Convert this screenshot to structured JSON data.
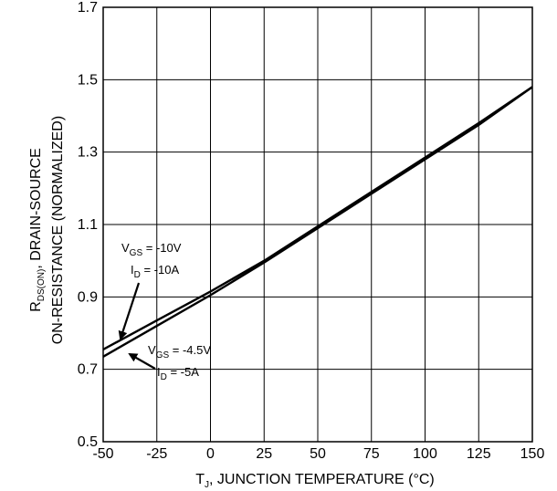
{
  "chart_data": {
    "type": "line",
    "xlim": [
      -50,
      150
    ],
    "ylim": [
      0.5,
      1.7
    ],
    "x_ticks": [
      -50,
      -25,
      0,
      25,
      50,
      75,
      100,
      125,
      150
    ],
    "y_ticks": [
      0.5,
      0.7,
      0.9,
      1.1,
      1.3,
      1.5,
      1.7
    ],
    "x_tick_labels": [
      "-50",
      "-25",
      "0",
      "25",
      "50",
      "75",
      "100",
      "125",
      "150"
    ],
    "y_tick_labels": [
      "0.5",
      "0.7",
      "0.9",
      "1.1",
      "1.3",
      "1.5",
      "1.7"
    ],
    "grid": true,
    "xlabel": {
      "main": "T",
      "sub": "J",
      "rest": ", JUNCTION TEMPERATURE (°C)"
    },
    "ylabel": {
      "line1_main": "R",
      "line1_sub": "DS(ON)",
      "line1_rest": ", DRAIN-SOURCE",
      "line2": "ON-RESISTANCE (NORMALIZED)"
    },
    "series": [
      {
        "x": [
          -50,
          -25,
          0,
          25,
          50,
          75,
          100,
          125,
          150
        ],
        "y": [
          0.755,
          0.835,
          0.915,
          1.0,
          1.095,
          1.19,
          1.285,
          1.38,
          1.48
        ],
        "annotation": {
          "vgs_main": "V",
          "vgs_sub": "GS",
          "vgs_rest": " = -10V",
          "id_main": "I",
          "id_sub": "D",
          "id_rest": " = -10A"
        }
      },
      {
        "x": [
          -50,
          -25,
          0,
          25,
          50,
          75,
          100,
          125,
          150
        ],
        "y": [
          0.735,
          0.82,
          0.905,
          0.995,
          1.09,
          1.185,
          1.28,
          1.375,
          1.48
        ],
        "annotation": {
          "vgs_main": "V",
          "vgs_sub": "GS",
          "vgs_rest": " = -4.5V",
          "id_main": "I",
          "id_sub": "D",
          "id_rest": " = -5A"
        }
      }
    ],
    "colors": {
      "line": "#000000",
      "grid": "#000000",
      "background": "#ffffff"
    }
  }
}
